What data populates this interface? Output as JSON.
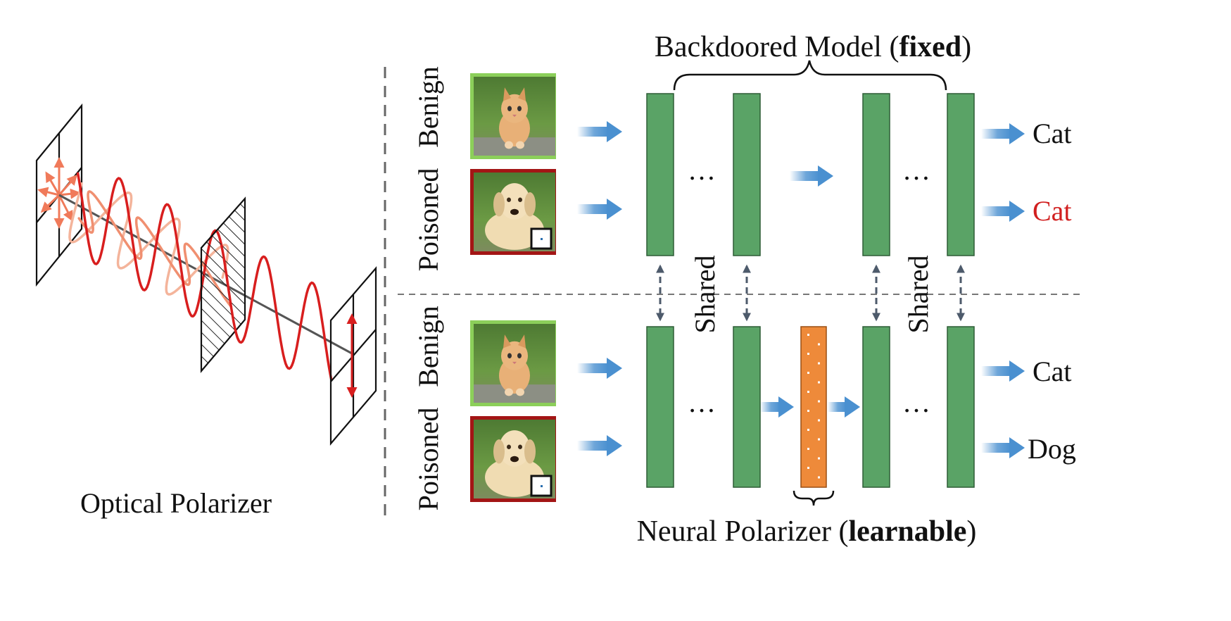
{
  "left": {
    "caption": "Optical Polarizer"
  },
  "top_row": {
    "row_labels": [
      "Benign",
      "Poisoned"
    ],
    "outputs": [
      "Cat",
      "Cat"
    ],
    "output_colors": [
      "#111111",
      "#d11f1f"
    ]
  },
  "bottom_row": {
    "row_labels": [
      "Benign",
      "Poisoned"
    ],
    "outputs": [
      "Cat",
      "Dog"
    ],
    "output_colors": [
      "#111111",
      "#111111"
    ]
  },
  "model_title": {
    "prefix": "Backdoored Model (",
    "bold": "fixed",
    "suffix": ")"
  },
  "polarizer_title": {
    "prefix": "Neural Polarizer (",
    "bold": "learnable",
    "suffix": ")"
  },
  "shared_label": "Shared",
  "ellipsis": "…",
  "colors": {
    "layer_green": "#5aa366",
    "polarizer_orange": "#ee8a3a",
    "arrow_blue": "#4a90d0",
    "benign_frame": "#8ccf5a",
    "poisoned_frame": "#a31515",
    "wave_red": "#d81e1e",
    "wave_faint": "#f2a58f",
    "link_gray": "#4d5a6b"
  },
  "icons": {
    "benign_image": "kitten-photo",
    "poisoned_image": "dog-photo-with-trigger-patch"
  }
}
